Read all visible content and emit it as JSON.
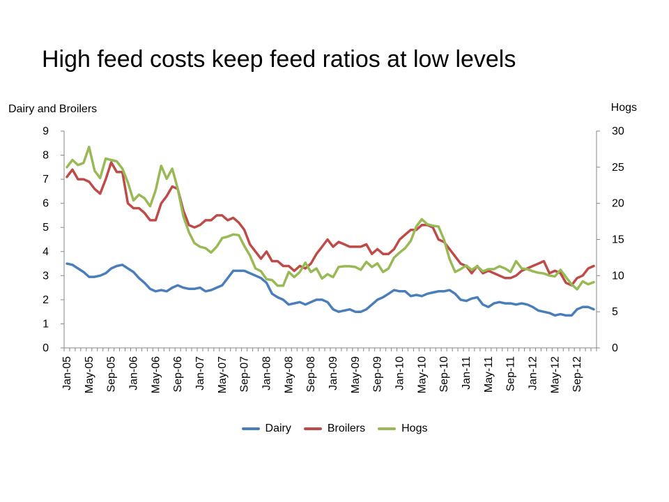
{
  "chart_data": {
    "type": "line",
    "title": "High feed costs keep feed ratios at low levels",
    "y_left_label": "Dairy and Broilers",
    "y_right_label": "Hogs",
    "y_left_lim": [
      0,
      9
    ],
    "y_right_lim": [
      0,
      30
    ],
    "y_left_ticks": [
      "0",
      "1",
      "2",
      "3",
      "4",
      "5",
      "6",
      "7",
      "8",
      "9"
    ],
    "y_right_ticks": [
      "0",
      "5",
      "10",
      "15",
      "20",
      "25",
      "30"
    ],
    "x_tick_labels": [
      "Jan-05",
      "May-05",
      "Sep-05",
      "Jan-06",
      "May-06",
      "Sep-06",
      "Jan-07",
      "May-07",
      "Sep-07",
      "Jan-08",
      "May-08",
      "Sep-08",
      "Jan-09",
      "May-09",
      "Sep-09",
      "Jan-10",
      "May-10",
      "Sep-10",
      "Jan-11",
      "May-11",
      "Sep-11",
      "Jan-12",
      "May-12",
      "Sep-12"
    ],
    "legend_position": "bottom",
    "grid": false,
    "series": [
      {
        "name": "Dairy",
        "axis": "left",
        "color": "#4a7ebb",
        "values": [
          3.5,
          3.45,
          3.3,
          3.15,
          2.95,
          2.95,
          3.0,
          3.1,
          3.3,
          3.4,
          3.45,
          3.3,
          3.15,
          2.9,
          2.7,
          2.45,
          2.35,
          2.4,
          2.35,
          2.5,
          2.6,
          2.5,
          2.45,
          2.45,
          2.5,
          2.35,
          2.4,
          2.5,
          2.6,
          2.9,
          3.2,
          3.2,
          3.2,
          3.1,
          3.0,
          2.9,
          2.7,
          2.25,
          2.1,
          2.0,
          1.8,
          1.85,
          1.9,
          1.8,
          1.9,
          2.0,
          2.0,
          1.9,
          1.6,
          1.5,
          1.55,
          1.6,
          1.5,
          1.5,
          1.6,
          1.8,
          2.0,
          2.1,
          2.25,
          2.4,
          2.35,
          2.35,
          2.15,
          2.2,
          2.15,
          2.25,
          2.3,
          2.35,
          2.35,
          2.4,
          2.25,
          2.0,
          1.95,
          2.05,
          2.1,
          1.8,
          1.7,
          1.85,
          1.9,
          1.85,
          1.85,
          1.8,
          1.85,
          1.8,
          1.7,
          1.55,
          1.5,
          1.45,
          1.35,
          1.4,
          1.35,
          1.35,
          1.6,
          1.7,
          1.7,
          1.6
        ]
      },
      {
        "name": "Broilers",
        "axis": "left",
        "color": "#be4b48",
        "values": [
          7.1,
          7.4,
          7.0,
          7.0,
          6.9,
          6.6,
          6.4,
          7.0,
          7.7,
          7.3,
          7.3,
          6.0,
          5.8,
          5.8,
          5.6,
          5.3,
          5.3,
          6.0,
          6.3,
          6.7,
          6.6,
          5.7,
          5.1,
          5.0,
          5.1,
          5.3,
          5.3,
          5.5,
          5.5,
          5.3,
          5.4,
          5.2,
          4.9,
          4.3,
          4.0,
          3.7,
          4.0,
          3.6,
          3.6,
          3.4,
          3.4,
          3.2,
          3.4,
          3.3,
          3.5,
          3.9,
          4.2,
          4.5,
          4.2,
          4.4,
          4.3,
          4.2,
          4.2,
          4.2,
          4.3,
          3.9,
          4.1,
          3.9,
          3.9,
          4.1,
          4.5,
          4.7,
          4.9,
          4.9,
          5.1,
          5.1,
          5.0,
          4.5,
          4.4,
          4.1,
          3.8,
          3.5,
          3.4,
          3.1,
          3.4,
          3.1,
          3.2,
          3.1,
          3.0,
          2.9,
          2.9,
          3.0,
          3.2,
          3.3,
          3.4,
          3.5,
          3.6,
          3.1,
          3.2,
          3.1,
          2.7,
          2.6,
          2.9,
          3.0,
          3.3,
          3.4
        ]
      },
      {
        "name": "Hogs",
        "axis": "right",
        "color": "#98b954",
        "values": [
          25.0,
          26.0,
          25.3,
          25.6,
          27.8,
          24.5,
          23.5,
          26.2,
          26.0,
          25.8,
          24.8,
          22.9,
          20.4,
          21.2,
          20.7,
          19.6,
          21.8,
          25.2,
          23.4,
          24.8,
          22.0,
          18.2,
          16.0,
          14.5,
          14.0,
          13.8,
          13.2,
          14.0,
          15.2,
          15.4,
          15.7,
          15.6,
          14.1,
          12.8,
          11.0,
          10.6,
          9.5,
          9.4,
          8.6,
          8.6,
          10.5,
          9.8,
          10.5,
          11.8,
          10.5,
          11.0,
          9.6,
          10.2,
          9.8,
          11.2,
          11.3,
          11.3,
          11.2,
          10.8,
          11.9,
          11.2,
          11.7,
          10.5,
          11.0,
          12.5,
          13.2,
          13.8,
          14.8,
          16.8,
          17.8,
          17.1,
          16.9,
          16.8,
          15.0,
          12.3,
          10.5,
          10.9,
          11.4,
          10.8,
          11.3,
          10.6,
          10.9,
          10.9,
          11.3,
          11.0,
          10.5,
          12.0,
          11.0,
          10.9,
          10.6,
          10.4,
          10.3,
          10.0,
          9.9,
          10.8,
          9.8,
          8.8,
          8.1,
          9.2,
          8.8,
          9.1
        ]
      }
    ]
  }
}
